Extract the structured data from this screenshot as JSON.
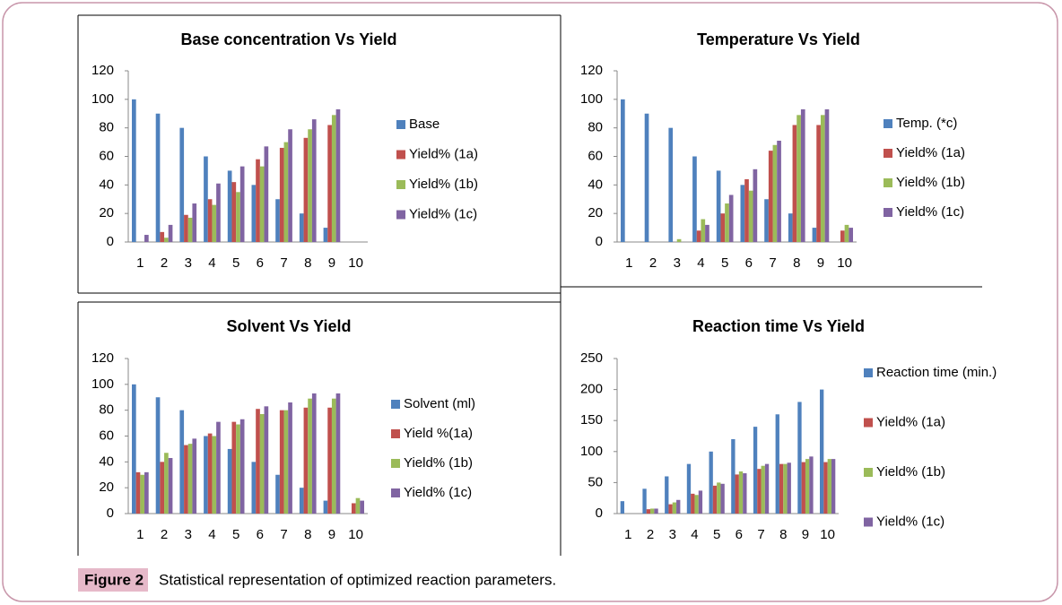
{
  "chart_data": [
    {
      "type": "bar",
      "title": "Base concentration Vs Yield",
      "categories": [
        "1",
        "2",
        "3",
        "4",
        "5",
        "6",
        "7",
        "8",
        "9",
        "10"
      ],
      "ylim": [
        0,
        120
      ],
      "yticks": [
        0,
        20,
        40,
        60,
        80,
        100,
        120
      ],
      "grid": false,
      "legend": "right",
      "series": [
        {
          "name": "Base",
          "color": "#4F81BD",
          "values": [
            100,
            90,
            80,
            60,
            50,
            40,
            30,
            20,
            10,
            0
          ]
        },
        {
          "name": "Yield% (1a)",
          "color": "#C0504D",
          "values": [
            0,
            7,
            19,
            30,
            42,
            58,
            66,
            73,
            82,
            0
          ]
        },
        {
          "name": "Yield% (1b)",
          "color": "#9BBB59",
          "values": [
            0,
            3,
            17,
            26,
            35,
            53,
            70,
            79,
            89,
            0
          ]
        },
        {
          "name": "Yield% (1c)",
          "color": "#8064A2",
          "values": [
            5,
            12,
            27,
            41,
            53,
            67,
            79,
            86,
            93,
            0
          ]
        }
      ]
    },
    {
      "type": "bar",
      "title": "Temperature Vs Yield",
      "categories": [
        "1",
        "2",
        "3",
        "4",
        "5",
        "6",
        "7",
        "8",
        "9",
        "10"
      ],
      "ylim": [
        0,
        120
      ],
      "yticks": [
        0,
        20,
        40,
        60,
        80,
        100,
        120
      ],
      "grid": false,
      "legend": "right",
      "series": [
        {
          "name": "Temp. (*c)",
          "color": "#4F81BD",
          "values": [
            100,
            90,
            80,
            60,
            50,
            40,
            30,
            20,
            10,
            0
          ]
        },
        {
          "name": "Yield% (1a)",
          "color": "#C0504D",
          "values": [
            0,
            0,
            0,
            8,
            20,
            44,
            64,
            82,
            82,
            8
          ]
        },
        {
          "name": "Yield% (1b)",
          "color": "#9BBB59",
          "values": [
            0,
            0,
            2,
            16,
            27,
            36,
            68,
            89,
            89,
            12
          ]
        },
        {
          "name": "Yield% (1c)",
          "color": "#8064A2",
          "values": [
            0,
            0,
            0,
            12,
            33,
            51,
            71,
            93,
            93,
            10
          ]
        }
      ]
    },
    {
      "type": "bar",
      "title": "Solvent Vs Yield",
      "categories": [
        "1",
        "2",
        "3",
        "4",
        "5",
        "6",
        "7",
        "8",
        "9",
        "10"
      ],
      "ylim": [
        0,
        120
      ],
      "yticks": [
        0,
        20,
        40,
        60,
        80,
        100,
        120
      ],
      "grid": false,
      "legend": "right",
      "series": [
        {
          "name": "Solvent (ml)",
          "color": "#4F81BD",
          "values": [
            100,
            90,
            80,
            60,
            50,
            40,
            30,
            20,
            10,
            0
          ]
        },
        {
          "name": "Yield %(1a)",
          "color": "#C0504D",
          "values": [
            32,
            40,
            53,
            62,
            71,
            81,
            80,
            82,
            82,
            8
          ]
        },
        {
          "name": "Yield% (1b)",
          "color": "#9BBB59",
          "values": [
            30,
            47,
            54,
            60,
            69,
            77,
            80,
            89,
            89,
            12
          ]
        },
        {
          "name": "Yield% (1c)",
          "color": "#8064A2",
          "values": [
            32,
            43,
            58,
            71,
            73,
            83,
            86,
            93,
            93,
            10
          ]
        }
      ]
    },
    {
      "type": "bar",
      "title": "Reaction time Vs Yield",
      "categories": [
        "1",
        "2",
        "3",
        "4",
        "5",
        "6",
        "7",
        "8",
        "9",
        "10"
      ],
      "ylim": [
        0,
        250
      ],
      "yticks": [
        0,
        50,
        100,
        150,
        200,
        250
      ],
      "grid": false,
      "legend": "right",
      "series": [
        {
          "name": "Reaction time (min.)",
          "color": "#4F81BD",
          "values": [
            20,
            40,
            60,
            80,
            100,
            120,
            140,
            160,
            180,
            200
          ]
        },
        {
          "name": "Yield% (1a)",
          "color": "#C0504D",
          "values": [
            0,
            7,
            15,
            32,
            45,
            63,
            72,
            80,
            83,
            83
          ]
        },
        {
          "name": "Yield% (1b)",
          "color": "#9BBB59",
          "values": [
            0,
            8,
            18,
            30,
            50,
            68,
            77,
            80,
            88,
            88
          ]
        },
        {
          "name": "Yield% (1c)",
          "color": "#8064A2",
          "values": [
            0,
            8,
            22,
            37,
            48,
            65,
            80,
            82,
            92,
            88
          ]
        }
      ]
    }
  ],
  "caption": {
    "label": "Figure 2",
    "text": "Statistical representation of optimized reaction parameters."
  }
}
